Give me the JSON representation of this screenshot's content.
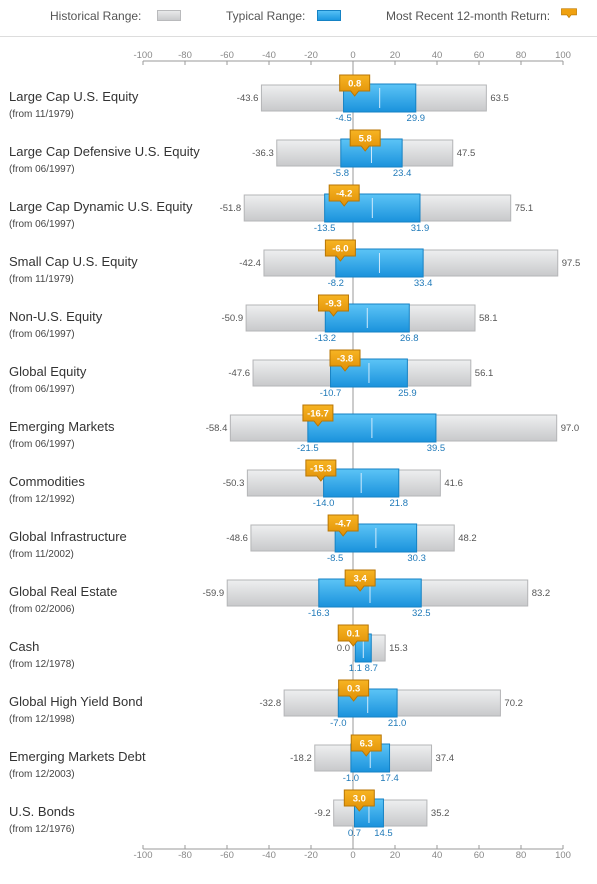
{
  "legend": {
    "historical_label": "Historical Range:",
    "typical_label": "Typical Range:",
    "return_label": "Most Recent 12-month Return:"
  },
  "colors": {
    "historical_fill": "#d6d7d9",
    "historical_stroke": "#b4b5b7",
    "typical_fill": "#2aa6ea",
    "typical_stroke": "#1582c4",
    "return_marker": "#f0a10f",
    "axis_line": "#9a9a9a"
  },
  "chart_data": {
    "type": "range_bar",
    "title": "",
    "xlabel": "",
    "ylabel": "",
    "xlim": [
      -100,
      100
    ],
    "ticks": [
      -100,
      -80,
      -60,
      -40,
      -20,
      0,
      20,
      40,
      60,
      80,
      100
    ],
    "categories": [
      {
        "name": "Large Cap U.S. Equity",
        "since": "(from 11/1979)",
        "hist_low": -43.6,
        "hist_high": 63.5,
        "typ_low": -4.5,
        "typ_high": 29.9,
        "recent": 0.8
      },
      {
        "name": "Large Cap Defensive U.S. Equity",
        "since": "(from 06/1997)",
        "hist_low": -36.3,
        "hist_high": 47.5,
        "typ_low": -5.8,
        "typ_high": 23.4,
        "recent": 5.8
      },
      {
        "name": "Large Cap Dynamic U.S. Equity",
        "since": "(from 06/1997)",
        "hist_low": -51.8,
        "hist_high": 75.1,
        "typ_low": -13.5,
        "typ_high": 31.9,
        "recent": -4.2
      },
      {
        "name": "Small Cap U.S. Equity",
        "since": "(from 11/1979)",
        "hist_low": -42.4,
        "hist_high": 97.5,
        "typ_low": -8.2,
        "typ_high": 33.4,
        "recent": -6.0
      },
      {
        "name": "Non-U.S. Equity",
        "since": "(from 06/1997)",
        "hist_low": -50.9,
        "hist_high": 58.1,
        "typ_low": -13.2,
        "typ_high": 26.8,
        "recent": -9.3
      },
      {
        "name": "Global Equity",
        "since": "(from 06/1997)",
        "hist_low": -47.6,
        "hist_high": 56.1,
        "typ_low": -10.7,
        "typ_high": 25.9,
        "recent": -3.8
      },
      {
        "name": "Emerging Markets",
        "since": "(from 06/1997)",
        "hist_low": -58.4,
        "hist_high": 97.0,
        "typ_low": -21.5,
        "typ_high": 39.5,
        "recent": -16.7
      },
      {
        "name": "Commodities",
        "since": "(from 12/1992)",
        "hist_low": -50.3,
        "hist_high": 41.6,
        "typ_low": -14.0,
        "typ_high": 21.8,
        "recent": -15.3
      },
      {
        "name": "Global Infrastructure",
        "since": "(from 11/2002)",
        "hist_low": -48.6,
        "hist_high": 48.2,
        "typ_low": -8.5,
        "typ_high": 30.3,
        "recent": -4.7
      },
      {
        "name": "Global Real Estate",
        "since": "(from 02/2006)",
        "hist_low": -59.9,
        "hist_high": 83.2,
        "typ_low": -16.3,
        "typ_high": 32.5,
        "recent": 3.4
      },
      {
        "name": "Cash",
        "since": "(from 12/1978)",
        "hist_low": 0.0,
        "hist_high": 15.3,
        "typ_low": 1.1,
        "typ_high": 8.7,
        "recent": 0.1
      },
      {
        "name": "Global High Yield Bond",
        "since": "(from 12/1998)",
        "hist_low": -32.8,
        "hist_high": 70.2,
        "typ_low": -7.0,
        "typ_high": 21.0,
        "recent": 0.3
      },
      {
        "name": "Emerging Markets Debt",
        "since": "(from 12/2003)",
        "hist_low": -18.2,
        "hist_high": 37.4,
        "typ_low": -1.0,
        "typ_high": 17.4,
        "recent": 6.3
      },
      {
        "name": "U.S. Bonds",
        "since": "(from 12/1976)",
        "hist_low": -9.2,
        "hist_high": 35.2,
        "typ_low": 0.7,
        "typ_high": 14.5,
        "recent": 3.0
      }
    ]
  }
}
